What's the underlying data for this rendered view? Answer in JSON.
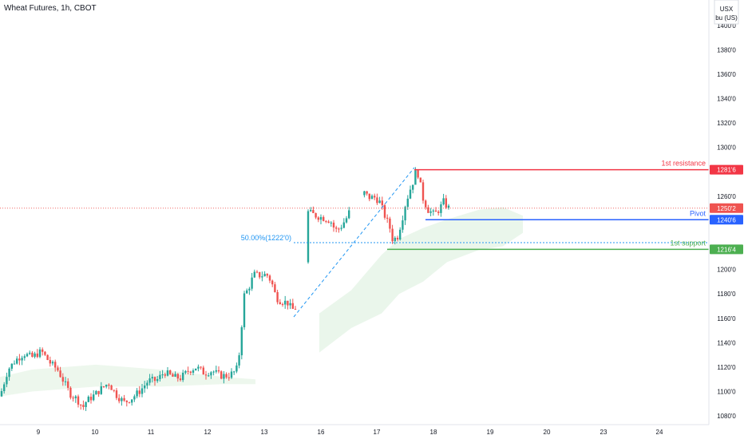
{
  "header": {
    "title": "Wheat Futures, 1h, CBOT"
  },
  "price_axis": {
    "currency": "USX",
    "unit_line": "bu (US)"
  },
  "colors": {
    "up": "#26a69a",
    "down": "#ef5350",
    "resistance": "#f23645",
    "pivot": "#2962ff",
    "support": "#4caf50",
    "cloud": "#e8f5e9",
    "cloud_red": "#fde8e8",
    "fib": "#2196f3"
  },
  "levels": {
    "resistance": {
      "label": "1st resistance",
      "value": "1281'6",
      "price": 1281.75
    },
    "pivot": {
      "label": "Pivot",
      "value": "1240'6",
      "price": 1240.75
    },
    "support": {
      "label": "1st support",
      "value": "1216'4",
      "price": 1216.5
    },
    "current": {
      "value": "1250'2",
      "price": 1250.25
    },
    "fib": {
      "label": "50.00%(1222'0)",
      "price": 1222.0
    }
  },
  "chart_data": {
    "type": "candlestick",
    "title": "Wheat Futures, 1h, CBOT",
    "x_ticks": [
      "9",
      "10",
      "11",
      "12",
      "13",
      "16",
      "17",
      "18",
      "19",
      "20",
      "23",
      "24"
    ],
    "y_ticks": [
      "1400'0",
      "1380'0",
      "1360'0",
      "1340'0",
      "1320'0",
      "1300'0",
      "1260'0",
      "1200'0",
      "1180'0",
      "1160'0",
      "1140'0",
      "1120'0",
      "1100'0",
      "1080'0"
    ],
    "ylim": [
      1075,
      1425
    ],
    "close_path": [
      [
        0,
        1096
      ],
      [
        10,
        1118
      ],
      [
        20,
        1126
      ],
      [
        30,
        1131
      ],
      [
        40,
        1128
      ],
      [
        52,
        1133
      ],
      [
        62,
        1124
      ],
      [
        72,
        1118
      ],
      [
        80,
        1108
      ],
      [
        88,
        1098
      ],
      [
        96,
        1094
      ],
      [
        104,
        1087
      ],
      [
        108,
        1092
      ],
      [
        118,
        1097
      ],
      [
        128,
        1103
      ],
      [
        136,
        1107
      ],
      [
        146,
        1097
      ],
      [
        156,
        1091
      ],
      [
        166,
        1095
      ],
      [
        176,
        1101
      ],
      [
        186,
        1109
      ],
      [
        196,
        1109
      ],
      [
        206,
        1116
      ],
      [
        216,
        1112
      ],
      [
        226,
        1111
      ],
      [
        236,
        1117
      ],
      [
        246,
        1120
      ],
      [
        256,
        1115
      ],
      [
        266,
        1117
      ],
      [
        276,
        1113
      ],
      [
        286,
        1113
      ],
      [
        296,
        1117
      ],
      [
        301,
        1136
      ],
      [
        305,
        1178
      ],
      [
        311,
        1184
      ],
      [
        318,
        1196
      ],
      [
        326,
        1195
      ],
      [
        334,
        1196
      ],
      [
        340,
        1190
      ],
      [
        346,
        1177
      ],
      [
        352,
        1174
      ],
      [
        360,
        1173
      ],
      [
        366,
        1167
      ],
      [
        374,
        1170
      ],
      [
        380,
        1170
      ],
      [
        386,
        1247
      ],
      [
        396,
        1244
      ],
      [
        406,
        1242
      ],
      [
        414,
        1240
      ],
      [
        420,
        1232
      ],
      [
        426,
        1234
      ],
      [
        434,
        1242
      ],
      [
        440,
        1251
      ],
      [
        456,
        1263
      ],
      [
        462,
        1259
      ],
      [
        470,
        1259
      ],
      [
        476,
        1255
      ],
      [
        482,
        1244
      ],
      [
        488,
        1235
      ],
      [
        492,
        1224
      ],
      [
        498,
        1227
      ],
      [
        504,
        1242
      ],
      [
        508,
        1254
      ],
      [
        514,
        1266
      ],
      [
        518,
        1273
      ],
      [
        522,
        1283
      ],
      [
        526,
        1271
      ],
      [
        530,
        1258
      ],
      [
        536,
        1249
      ],
      [
        544,
        1245
      ],
      [
        550,
        1249
      ],
      [
        556,
        1256
      ],
      [
        560,
        1251
      ],
      [
        564,
        1250
      ]
    ],
    "ichimoku_cloud": {
      "upper": [
        [
          400,
          1164
        ],
        [
          440,
          1183
        ],
        [
          478,
          1212
        ],
        [
          500,
          1225
        ],
        [
          530,
          1234
        ],
        [
          560,
          1241
        ],
        [
          600,
          1249
        ],
        [
          630,
          1251
        ],
        [
          655,
          1244
        ]
      ],
      "lower": [
        [
          400,
          1132
        ],
        [
          440,
          1152
        ],
        [
          478,
          1164
        ],
        [
          500,
          1180
        ],
        [
          530,
          1190
        ],
        [
          560,
          1206
        ],
        [
          600,
          1216
        ],
        [
          630,
          1219
        ],
        [
          655,
          1230
        ]
      ]
    }
  }
}
